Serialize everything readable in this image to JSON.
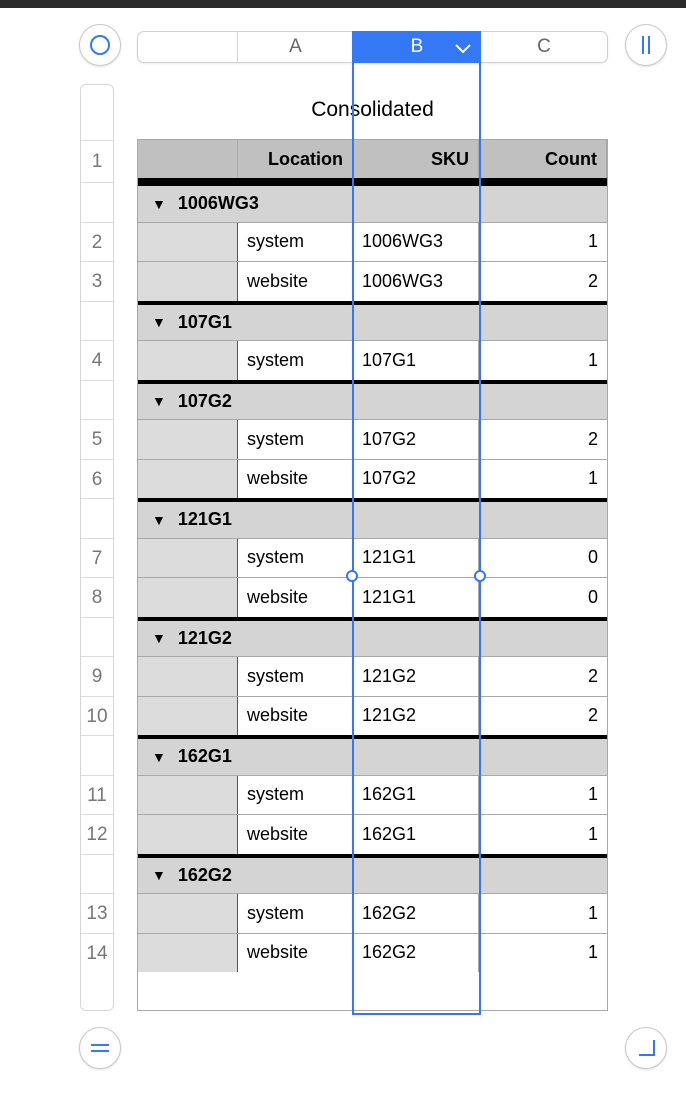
{
  "toolbar": {
    "columns": [
      "A",
      "B",
      "C"
    ],
    "selected_column": "B",
    "accent": "#3478f6"
  },
  "table": {
    "title": "Consolidated",
    "headers": [
      "",
      "Location",
      "SKU",
      "Count"
    ],
    "header_row_number": "1",
    "groups": [
      {
        "name": "1006WG3",
        "rows": [
          {
            "n": "2",
            "location": "system",
            "sku": "1006WG3",
            "count": "1"
          },
          {
            "n": "3",
            "location": "website",
            "sku": "1006WG3",
            "count": "2"
          }
        ]
      },
      {
        "name": "107G1",
        "rows": [
          {
            "n": "4",
            "location": "system",
            "sku": "107G1",
            "count": "1"
          }
        ]
      },
      {
        "name": "107G2",
        "rows": [
          {
            "n": "5",
            "location": "system",
            "sku": "107G2",
            "count": "2"
          },
          {
            "n": "6",
            "location": "website",
            "sku": "107G2",
            "count": "1"
          }
        ]
      },
      {
        "name": "121G1",
        "rows": [
          {
            "n": "7",
            "location": "system",
            "sku": "121G1",
            "count": "0"
          },
          {
            "n": "8",
            "location": "website",
            "sku": "121G1",
            "count": "0"
          }
        ]
      },
      {
        "name": "121G2",
        "rows": [
          {
            "n": "9",
            "location": "system",
            "sku": "121G2",
            "count": "2"
          },
          {
            "n": "10",
            "location": "website",
            "sku": "121G2",
            "count": "2"
          }
        ]
      },
      {
        "name": "162G1",
        "rows": [
          {
            "n": "11",
            "location": "system",
            "sku": "162G1",
            "count": "1"
          },
          {
            "n": "12",
            "location": "website",
            "sku": "162G1",
            "count": "1"
          }
        ]
      },
      {
        "name": "162G2",
        "rows": [
          {
            "n": "13",
            "location": "system",
            "sku": "162G2",
            "count": "1"
          },
          {
            "n": "14",
            "location": "website",
            "sku": "162G2",
            "count": "1"
          }
        ]
      }
    ]
  }
}
